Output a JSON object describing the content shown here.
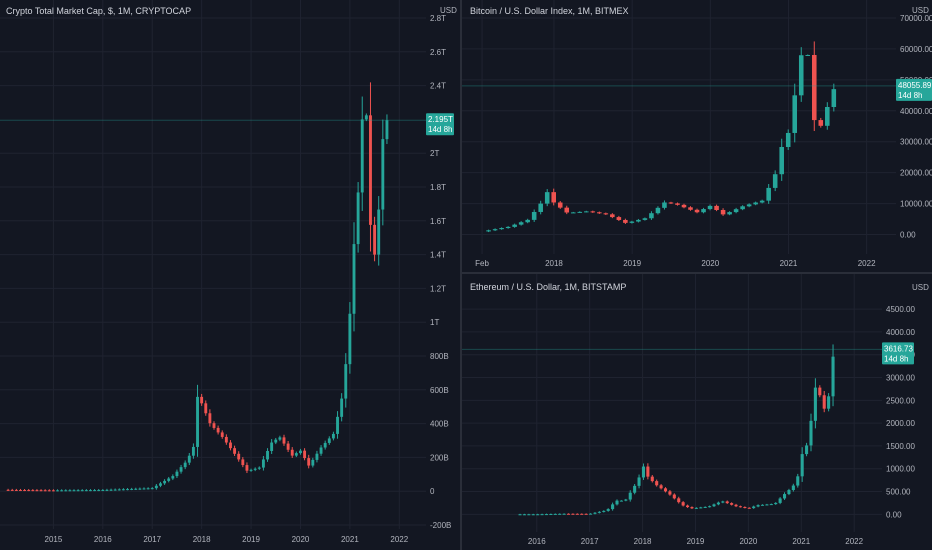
{
  "colors": {
    "up": "#26a69a",
    "down": "#ef5350",
    "bg": "#131722",
    "grid": "#1f2330",
    "text": "#b2b5be",
    "badge": "#26a69a"
  },
  "chart_data": [
    {
      "type": "candlestick",
      "title": "Crypto Total Market Cap, $, 1M, CRYPTOCAP",
      "currency": "USD",
      "current_value_label": "2.195T",
      "countdown_label": "14d 8h",
      "current_value": 2.195,
      "y_unit": "trillion USD",
      "ylim": [
        -0.2,
        2.8
      ],
      "y_ticks": [
        {
          "v": 2.8,
          "label": "2.8T"
        },
        {
          "v": 2.6,
          "label": "2.6T"
        },
        {
          "v": 2.4,
          "label": "2.4T"
        },
        {
          "v": 2.0,
          "label": "2T"
        },
        {
          "v": 1.8,
          "label": "1.8T"
        },
        {
          "v": 1.6,
          "label": "1.6T"
        },
        {
          "v": 1.4,
          "label": "1.4T"
        },
        {
          "v": 1.2,
          "label": "1.2T"
        },
        {
          "v": 1.0,
          "label": "1T"
        },
        {
          "v": 0.8,
          "label": "800B"
        },
        {
          "v": 0.6,
          "label": "600B"
        },
        {
          "v": 0.4,
          "label": "400B"
        },
        {
          "v": 0.2,
          "label": "200B"
        },
        {
          "v": 0.0,
          "label": "0"
        },
        {
          "v": -0.2,
          "label": "-200B"
        }
      ],
      "xlim": [
        2014.0,
        2022.5
      ],
      "x_ticks": [
        {
          "v": 2015,
          "label": "2015"
        },
        {
          "v": 2016,
          "label": "2016"
        },
        {
          "v": 2017,
          "label": "2017"
        },
        {
          "v": 2018,
          "label": "2018"
        },
        {
          "v": 2019,
          "label": "2019"
        },
        {
          "v": 2020,
          "label": "2020"
        },
        {
          "v": 2021,
          "label": "2021"
        },
        {
          "v": 2022,
          "label": "2022"
        }
      ],
      "keyframes": [
        {
          "t": 2014.0,
          "v": 0.008
        },
        {
          "t": 2015.0,
          "v": 0.005
        },
        {
          "t": 2016.0,
          "v": 0.007
        },
        {
          "t": 2017.0,
          "v": 0.018
        },
        {
          "t": 2017.42,
          "v": 0.09
        },
        {
          "t": 2017.67,
          "v": 0.17
        },
        {
          "t": 2017.83,
          "v": 0.25
        },
        {
          "t": 2017.92,
          "v": 0.57
        },
        {
          "t": 2018.0,
          "v": 0.52
        },
        {
          "t": 2018.17,
          "v": 0.4
        },
        {
          "t": 2018.42,
          "v": 0.32
        },
        {
          "t": 2018.67,
          "v": 0.22
        },
        {
          "t": 2018.92,
          "v": 0.12
        },
        {
          "t": 2019.17,
          "v": 0.14
        },
        {
          "t": 2019.42,
          "v": 0.29
        },
        {
          "t": 2019.58,
          "v": 0.32
        },
        {
          "t": 2019.83,
          "v": 0.21
        },
        {
          "t": 2020.0,
          "v": 0.24
        },
        {
          "t": 2020.17,
          "v": 0.15
        },
        {
          "t": 2020.42,
          "v": 0.26
        },
        {
          "t": 2020.67,
          "v": 0.34
        },
        {
          "t": 2020.83,
          "v": 0.54
        },
        {
          "t": 2020.92,
          "v": 0.76
        },
        {
          "t": 2021.0,
          "v": 1.05
        },
        {
          "t": 2021.08,
          "v": 1.45
        },
        {
          "t": 2021.17,
          "v": 1.78
        },
        {
          "t": 2021.25,
          "v": 2.2
        },
        {
          "t": 2021.33,
          "v": 2.25
        },
        {
          "t": 2021.42,
          "v": 1.55
        },
        {
          "t": 2021.5,
          "v": 1.4
        },
        {
          "t": 2021.58,
          "v": 1.65
        },
        {
          "t": 2021.67,
          "v": 2.1
        },
        {
          "t": 2021.75,
          "v": 2.195
        }
      ]
    },
    {
      "type": "candlestick",
      "title": "Bitcoin / U.S. Dollar Index, 1M, BITMEX",
      "currency": "USD",
      "current_value_label": "48055.89",
      "countdown_label": "14d 8h",
      "current_value": 48055.89,
      "ylim": [
        -5000,
        70000
      ],
      "y_ticks": [
        {
          "v": 70000,
          "label": "70000.00"
        },
        {
          "v": 60000,
          "label": "60000.00"
        },
        {
          "v": 50000,
          "label": "50000.00"
        },
        {
          "v": 40000,
          "label": "40000.00"
        },
        {
          "v": 30000,
          "label": "30000.00"
        },
        {
          "v": 20000,
          "label": "20000.00"
        },
        {
          "v": 10000,
          "label": "10000.00"
        },
        {
          "v": 0,
          "label": "0.00"
        }
      ],
      "xlim": [
        2016.9,
        2022.35
      ],
      "x_ticks": [
        {
          "v": 2017.08,
          "label": "Feb"
        },
        {
          "v": 2018,
          "label": "2018"
        },
        {
          "v": 2019,
          "label": "2019"
        },
        {
          "v": 2020,
          "label": "2020"
        },
        {
          "v": 2021,
          "label": "2021"
        },
        {
          "v": 2022,
          "label": "2022"
        }
      ],
      "keyframes": [
        {
          "t": 2017.08,
          "v": 1000
        },
        {
          "t": 2017.42,
          "v": 2500
        },
        {
          "t": 2017.67,
          "v": 4800
        },
        {
          "t": 2017.83,
          "v": 10000
        },
        {
          "t": 2017.92,
          "v": 14000
        },
        {
          "t": 2018.0,
          "v": 10200
        },
        {
          "t": 2018.17,
          "v": 7000
        },
        {
          "t": 2018.42,
          "v": 7500
        },
        {
          "t": 2018.67,
          "v": 6500
        },
        {
          "t": 2018.92,
          "v": 3700
        },
        {
          "t": 2019.17,
          "v": 5300
        },
        {
          "t": 2019.42,
          "v": 10500
        },
        {
          "t": 2019.58,
          "v": 9600
        },
        {
          "t": 2019.83,
          "v": 7200
        },
        {
          "t": 2020.0,
          "v": 9300
        },
        {
          "t": 2020.17,
          "v": 6400
        },
        {
          "t": 2020.42,
          "v": 9200
        },
        {
          "t": 2020.67,
          "v": 11000
        },
        {
          "t": 2020.83,
          "v": 19500
        },
        {
          "t": 2020.92,
          "v": 29000
        },
        {
          "t": 2021.0,
          "v": 33000
        },
        {
          "t": 2021.08,
          "v": 45000
        },
        {
          "t": 2021.17,
          "v": 59000
        },
        {
          "t": 2021.25,
          "v": 58000
        },
        {
          "t": 2021.33,
          "v": 37000
        },
        {
          "t": 2021.42,
          "v": 35000
        },
        {
          "t": 2021.5,
          "v": 41500
        },
        {
          "t": 2021.58,
          "v": 47000
        },
        {
          "t": 2021.62,
          "v": 48055
        }
      ]
    },
    {
      "type": "candlestick",
      "title": "Ethereum / U.S. Dollar, 1M, BITSTAMP",
      "currency": "USD",
      "current_value_label": "3616.73",
      "countdown_label": "14d 8h",
      "current_value": 3616.73,
      "ylim": [
        -300,
        4700
      ],
      "y_ticks": [
        {
          "v": 4500,
          "label": "4500.00"
        },
        {
          "v": 4000,
          "label": "4000.00"
        },
        {
          "v": 3500,
          "label": "3500.00"
        },
        {
          "v": 3000,
          "label": "3000.00"
        },
        {
          "v": 2500,
          "label": "2500.00"
        },
        {
          "v": 2000,
          "label": "2000.00"
        },
        {
          "v": 1500,
          "label": "1500.00"
        },
        {
          "v": 1000,
          "label": "1000.00"
        },
        {
          "v": 500,
          "label": "500.00"
        },
        {
          "v": 0,
          "label": "0.00"
        }
      ],
      "xlim": [
        2014.7,
        2022.45
      ],
      "x_ticks": [
        {
          "v": 2016,
          "label": "2016"
        },
        {
          "v": 2017,
          "label": "2017"
        },
        {
          "v": 2018,
          "label": "2018"
        },
        {
          "v": 2019,
          "label": "2019"
        },
        {
          "v": 2020,
          "label": "2020"
        },
        {
          "v": 2021,
          "label": "2021"
        },
        {
          "v": 2022,
          "label": "2022"
        }
      ],
      "keyframes": [
        {
          "t": 2015.6,
          "v": 1
        },
        {
          "t": 2016.0,
          "v": 1
        },
        {
          "t": 2016.5,
          "v": 12
        },
        {
          "t": 2017.0,
          "v": 10
        },
        {
          "t": 2017.33,
          "v": 90
        },
        {
          "t": 2017.5,
          "v": 300
        },
        {
          "t": 2017.67,
          "v": 300
        },
        {
          "t": 2017.92,
          "v": 750
        },
        {
          "t": 2018.0,
          "v": 1100
        },
        {
          "t": 2018.08,
          "v": 850
        },
        {
          "t": 2018.25,
          "v": 650
        },
        {
          "t": 2018.5,
          "v": 450
        },
        {
          "t": 2018.75,
          "v": 200
        },
        {
          "t": 2018.92,
          "v": 130
        },
        {
          "t": 2019.25,
          "v": 170
        },
        {
          "t": 2019.5,
          "v": 290
        },
        {
          "t": 2019.75,
          "v": 180
        },
        {
          "t": 2020.0,
          "v": 130
        },
        {
          "t": 2020.17,
          "v": 200
        },
        {
          "t": 2020.5,
          "v": 230
        },
        {
          "t": 2020.67,
          "v": 430
        },
        {
          "t": 2020.83,
          "v": 600
        },
        {
          "t": 2020.92,
          "v": 740
        },
        {
          "t": 2021.0,
          "v": 1300
        },
        {
          "t": 2021.08,
          "v": 1400
        },
        {
          "t": 2021.17,
          "v": 1900
        },
        {
          "t": 2021.25,
          "v": 2800
        },
        {
          "t": 2021.33,
          "v": 2700
        },
        {
          "t": 2021.42,
          "v": 2300
        },
        {
          "t": 2021.5,
          "v": 2400
        },
        {
          "t": 2021.58,
          "v": 3300
        },
        {
          "t": 2021.62,
          "v": 3616
        }
      ]
    }
  ]
}
